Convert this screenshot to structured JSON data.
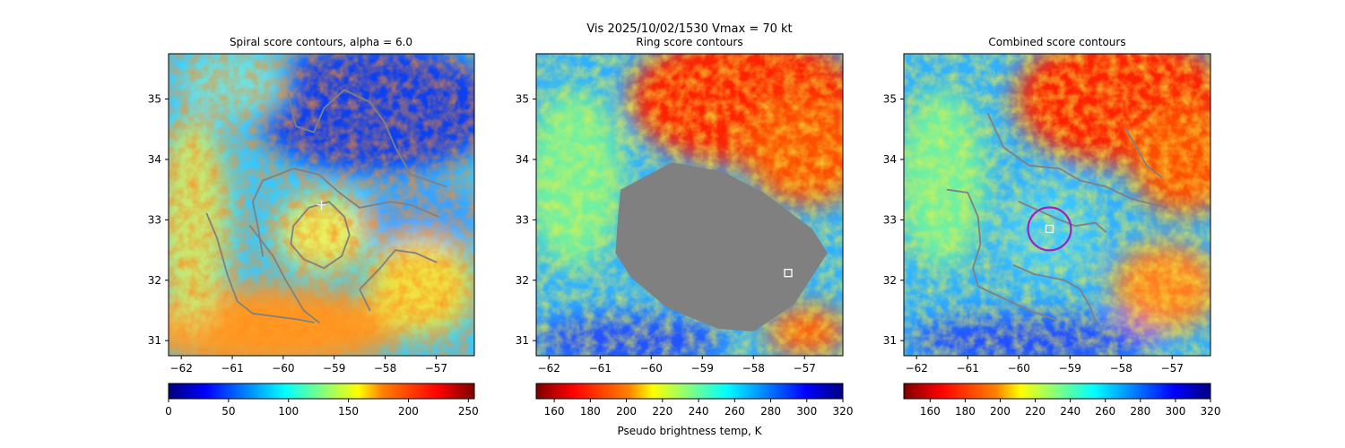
{
  "figure": {
    "title_line1": "Vis  2025/10/02/1530    Vmax = 70 kt",
    "colorbar_label": "Pseudo brightness temp, K"
  },
  "colors": {
    "contour": "#808080",
    "mask": "#808080",
    "ring": "#a020c0",
    "center_marker": "#ffffff",
    "colormap": [
      "#7f0000",
      "#ff0000",
      "#ff8000",
      "#ffff00",
      "#80ff80",
      "#00ffff",
      "#0080ff",
      "#0000ff",
      "#00007f"
    ]
  },
  "chart_data": [
    {
      "type": "heatmap",
      "title": "Spiral score contours, alpha =  6.0",
      "xlim": [
        -62.25,
        -56.25
      ],
      "ylim": [
        30.75,
        35.75
      ],
      "x_ticks": [
        -62,
        -61,
        -60,
        -59,
        -58,
        -57
      ],
      "y_ticks": [
        31,
        32,
        33,
        34,
        35
      ],
      "colorbar": {
        "range": [
          0,
          255
        ],
        "ticks": [
          0,
          50,
          100,
          150,
          200,
          250
        ],
        "reversed_colormap": true
      },
      "center_marker": {
        "symbol": "plus",
        "lon": -59.25,
        "lat": 33.25
      },
      "contour_lines": [
        [
          [
            -59.1,
            33.3
          ],
          [
            -59.5,
            33.2
          ],
          [
            -59.8,
            32.9
          ],
          [
            -59.85,
            32.6
          ],
          [
            -59.6,
            32.35
          ],
          [
            -59.2,
            32.2
          ],
          [
            -58.85,
            32.4
          ],
          [
            -58.7,
            32.75
          ],
          [
            -58.8,
            33.05
          ],
          [
            -59.1,
            33.3
          ]
        ],
        [
          [
            -61.5,
            33.1
          ],
          [
            -61.3,
            32.7
          ],
          [
            -61.1,
            32.1
          ],
          [
            -60.9,
            31.65
          ],
          [
            -60.6,
            31.45
          ],
          [
            -59.7,
            31.35
          ],
          [
            -59.4,
            31.3
          ]
        ],
        [
          [
            -60.4,
            32.4
          ],
          [
            -60.5,
            32.9
          ],
          [
            -60.6,
            33.3
          ],
          [
            -60.4,
            33.65
          ],
          [
            -59.8,
            33.85
          ],
          [
            -59.3,
            33.75
          ],
          [
            -58.9,
            33.45
          ],
          [
            -58.5,
            33.2
          ],
          [
            -57.9,
            33.3
          ],
          [
            -57.5,
            33.25
          ],
          [
            -56.95,
            33.05
          ]
        ],
        [
          [
            -59.9,
            35.1
          ],
          [
            -59.8,
            34.7
          ],
          [
            -59.75,
            34.55
          ],
          [
            -59.4,
            34.45
          ],
          [
            -59.2,
            34.85
          ],
          [
            -58.8,
            35.15
          ],
          [
            -58.3,
            34.95
          ],
          [
            -58.0,
            34.6
          ],
          [
            -57.8,
            34.2
          ],
          [
            -57.5,
            33.75
          ],
          [
            -56.8,
            33.55
          ]
        ],
        [
          [
            -58.3,
            31.5
          ],
          [
            -58.5,
            31.85
          ],
          [
            -58.1,
            32.2
          ],
          [
            -57.8,
            32.5
          ],
          [
            -57.4,
            32.45
          ],
          [
            -57.0,
            32.3
          ]
        ],
        [
          [
            -60.65,
            32.9
          ],
          [
            -60.2,
            32.4
          ],
          [
            -59.95,
            32.0
          ],
          [
            -59.6,
            31.5
          ],
          [
            -59.3,
            31.3
          ]
        ]
      ]
    },
    {
      "type": "heatmap",
      "title": "Ring score contours",
      "xlim": [
        -62.25,
        -56.25
      ],
      "ylim": [
        30.75,
        35.75
      ],
      "x_ticks": [
        -62,
        -61,
        -60,
        -59,
        -58,
        -57
      ],
      "y_ticks": [
        31,
        32,
        33,
        34,
        35
      ],
      "colorbar": {
        "range": [
          150,
          320
        ],
        "ticks": [
          160,
          180,
          200,
          220,
          240,
          260,
          280,
          300,
          320
        ],
        "reversed_colormap": false
      },
      "center_marker": {
        "symbol": "square",
        "lon": -57.32,
        "lat": 32.12
      },
      "masked_region": [
        [
          -60.6,
          33.5
        ],
        [
          -59.6,
          33.95
        ],
        [
          -58.6,
          33.8
        ],
        [
          -57.8,
          33.45
        ],
        [
          -56.85,
          32.85
        ],
        [
          -56.55,
          32.45
        ],
        [
          -57.2,
          31.6
        ],
        [
          -58.0,
          31.15
        ],
        [
          -58.7,
          31.2
        ],
        [
          -59.7,
          31.55
        ],
        [
          -60.4,
          32.05
        ],
        [
          -60.7,
          32.45
        ],
        [
          -60.65,
          33.05
        ],
        [
          -60.6,
          33.5
        ]
      ]
    },
    {
      "type": "heatmap",
      "title": "Combined score contours",
      "xlim": [
        -62.25,
        -56.25
      ],
      "ylim": [
        30.75,
        35.75
      ],
      "x_ticks": [
        -62,
        -61,
        -60,
        -59,
        -58,
        -57
      ],
      "y_ticks": [
        31,
        32,
        33,
        34,
        35
      ],
      "colorbar": {
        "range": [
          145,
          320
        ],
        "ticks": [
          160,
          180,
          200,
          220,
          240,
          260,
          280,
          300,
          320
        ],
        "reversed_colormap": false
      },
      "center_marker": {
        "symbol": "square",
        "lon": -59.4,
        "lat": 32.85
      },
      "ring_marker": {
        "lon": -59.4,
        "lat": 32.85,
        "radius_deg": 0.42
      },
      "contour_lines": [
        [
          [
            -60.6,
            34.75
          ],
          [
            -60.3,
            34.2
          ],
          [
            -59.8,
            33.9
          ],
          [
            -59.2,
            33.85
          ],
          [
            -58.8,
            33.65
          ],
          [
            -58.3,
            33.55
          ],
          [
            -57.8,
            33.35
          ],
          [
            -57.1,
            33.2
          ]
        ],
        [
          [
            -61.4,
            33.5
          ],
          [
            -61.0,
            33.45
          ],
          [
            -60.8,
            33.05
          ],
          [
            -60.75,
            32.6
          ],
          [
            -60.9,
            32.2
          ],
          [
            -60.8,
            31.9
          ],
          [
            -60.3,
            31.7
          ],
          [
            -59.8,
            31.5
          ],
          [
            -59.3,
            31.35
          ]
        ],
        [
          [
            -60.1,
            32.25
          ],
          [
            -59.7,
            32.1
          ],
          [
            -59.1,
            32.0
          ],
          [
            -58.8,
            31.85
          ],
          [
            -58.6,
            31.55
          ],
          [
            -58.5,
            31.3
          ]
        ],
        [
          [
            -57.9,
            34.5
          ],
          [
            -57.7,
            34.2
          ],
          [
            -57.5,
            33.9
          ],
          [
            -57.2,
            33.7
          ]
        ],
        [
          [
            -60.0,
            33.3
          ],
          [
            -59.6,
            33.15
          ],
          [
            -59.2,
            33.0
          ],
          [
            -58.9,
            32.9
          ],
          [
            -58.5,
            32.95
          ],
          [
            -58.3,
            32.8
          ]
        ]
      ]
    }
  ]
}
